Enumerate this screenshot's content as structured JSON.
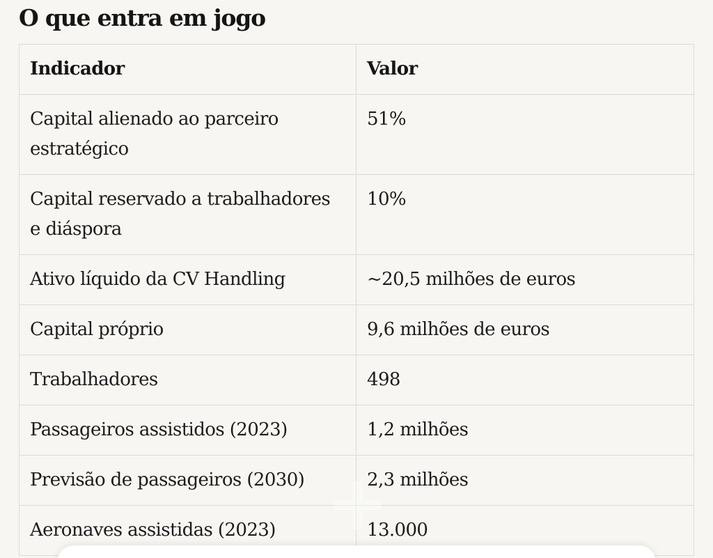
{
  "section": {
    "title": "O que entra em jogo"
  },
  "table": {
    "headers": [
      "Indicador",
      "Valor"
    ],
    "rows": [
      {
        "indicator": "Capital alienado ao parceiro estratégico",
        "value": "51%"
      },
      {
        "indicator": "Capital reservado a trabalhadores e diáspora",
        "value": "10%"
      },
      {
        "indicator": "Ativo líquido da CV Handling",
        "value": "~20,5 milhões de euros"
      },
      {
        "indicator": "Capital próprio",
        "value": "9,6 milhões de euros"
      },
      {
        "indicator": "Trabalhadores",
        "value": "498"
      },
      {
        "indicator": "Passageiros assistidos (2023)",
        "value": "1,2 milhões"
      },
      {
        "indicator": "Previsão de passageiros (2030)",
        "value": "2,3 milhões"
      },
      {
        "indicator": "Aeronaves assistidas (2023)",
        "value": "13.000"
      }
    ]
  }
}
